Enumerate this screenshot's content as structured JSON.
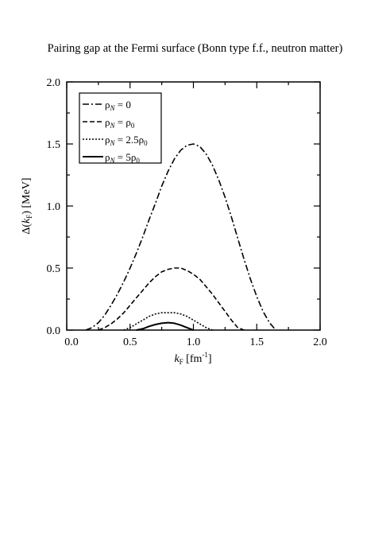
{
  "chart_data": {
    "type": "line",
    "title": "Pairing gap at the Fermi surface (Bonn type f.f., neutron matter)",
    "xlabel": {
      "main": "k",
      "sub": "F",
      "rest": " [fm",
      "sup": "-1",
      "end": "]"
    },
    "ylabel": {
      "pre": "Δ(",
      "main": "k",
      "sub": "F",
      "rest": ") [MeV]"
    },
    "xlim": [
      0.0,
      2.0
    ],
    "ylim": [
      0.0,
      2.0
    ],
    "xticks": [
      "0.0",
      "0.5",
      "1.0",
      "1.5",
      "2.0"
    ],
    "yticks": [
      "0.0",
      "0.5",
      "1.0",
      "1.5",
      "2.0"
    ],
    "xtick_values": [
      0.0,
      0.5,
      1.0,
      1.5,
      2.0
    ],
    "ytick_values": [
      0.0,
      0.5,
      1.0,
      1.5,
      2.0
    ],
    "grid": false,
    "legend_position": "top-left",
    "series": [
      {
        "name": "ρN = 0",
        "name_parts": [
          "ρ",
          "N",
          " = 0",
          ""
        ],
        "dash": "8 3 2 3",
        "x": [
          0.15,
          0.2,
          0.25,
          0.3,
          0.35,
          0.4,
          0.45,
          0.5,
          0.55,
          0.6,
          0.65,
          0.7,
          0.75,
          0.8,
          0.85,
          0.9,
          0.95,
          1.0,
          1.05,
          1.1,
          1.15,
          1.2,
          1.25,
          1.3,
          1.35,
          1.4,
          1.45,
          1.5,
          1.55,
          1.6,
          1.65
        ],
        "y": [
          0.0,
          0.02,
          0.06,
          0.12,
          0.2,
          0.29,
          0.39,
          0.5,
          0.62,
          0.75,
          0.89,
          1.02,
          1.16,
          1.28,
          1.38,
          1.45,
          1.49,
          1.5,
          1.48,
          1.42,
          1.33,
          1.21,
          1.07,
          0.91,
          0.74,
          0.57,
          0.41,
          0.27,
          0.15,
          0.06,
          0.0
        ]
      },
      {
        "name": "ρN = ρ0",
        "name_parts": [
          "ρ",
          "N",
          " = ρ",
          "0"
        ],
        "dash": "6 3",
        "x": [
          0.25,
          0.3,
          0.35,
          0.4,
          0.45,
          0.5,
          0.55,
          0.6,
          0.65,
          0.7,
          0.75,
          0.8,
          0.85,
          0.9,
          0.95,
          1.0,
          1.05,
          1.1,
          1.15,
          1.2,
          1.25,
          1.3,
          1.35,
          1.4
        ],
        "y": [
          0.0,
          0.02,
          0.05,
          0.09,
          0.14,
          0.2,
          0.26,
          0.32,
          0.38,
          0.43,
          0.47,
          0.49,
          0.5,
          0.5,
          0.48,
          0.45,
          0.41,
          0.35,
          0.29,
          0.22,
          0.15,
          0.08,
          0.02,
          0.0
        ]
      },
      {
        "name": "ρN = 2.5ρ0",
        "name_parts": [
          "ρ",
          "N",
          " = 2.5ρ",
          "0"
        ],
        "dash": "2 2",
        "x": [
          0.45,
          0.5,
          0.55,
          0.6,
          0.65,
          0.7,
          0.75,
          0.8,
          0.85,
          0.9,
          0.95,
          1.0,
          1.05,
          1.1,
          1.15
        ],
        "y": [
          0.0,
          0.02,
          0.05,
          0.08,
          0.11,
          0.13,
          0.14,
          0.14,
          0.14,
          0.13,
          0.11,
          0.08,
          0.05,
          0.02,
          0.0
        ]
      },
      {
        "name": "ρN = 5ρ0",
        "name_parts": [
          "ρ",
          "N",
          " = 5ρ",
          "0"
        ],
        "dash": "",
        "x": [
          0.55,
          0.6,
          0.65,
          0.7,
          0.75,
          0.8,
          0.85,
          0.9,
          0.95,
          1.0
        ],
        "y": [
          0.0,
          0.01,
          0.03,
          0.045,
          0.055,
          0.06,
          0.055,
          0.04,
          0.02,
          0.0
        ]
      }
    ]
  }
}
